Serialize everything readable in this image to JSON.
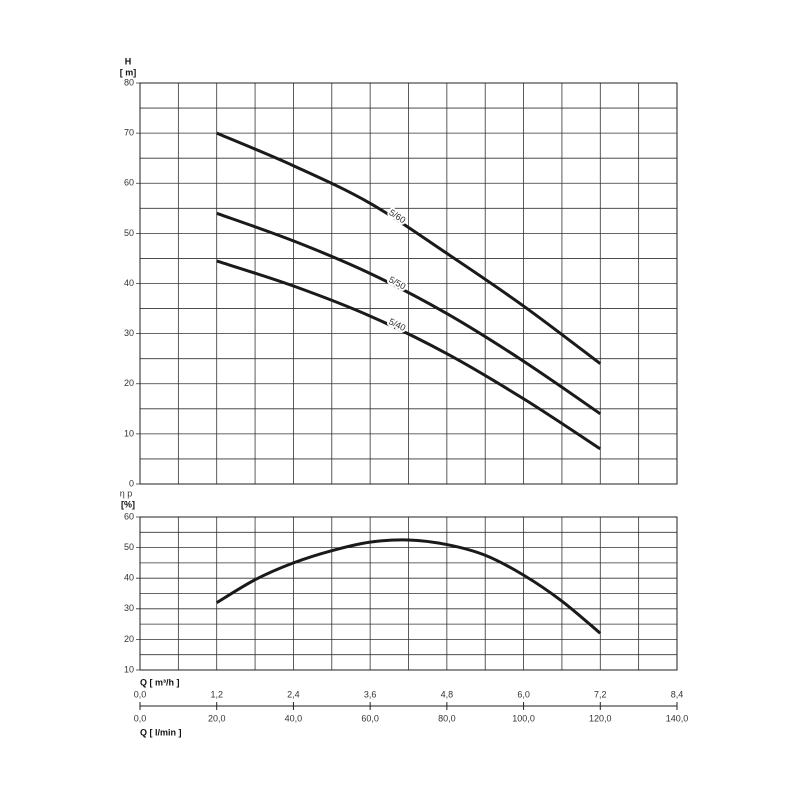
{
  "chart_data": [
    {
      "type": "line",
      "y_label": "H",
      "y_unit": "[ m]",
      "x": [
        20,
        40,
        60,
        80,
        100,
        120
      ],
      "series": [
        {
          "name": "5/60",
          "color": "#1a1a1a",
          "values": [
            70,
            63.5,
            56,
            46,
            35.5,
            24
          ]
        },
        {
          "name": "5/50",
          "color": "#1a1a1a",
          "values": [
            54,
            48.5,
            42,
            34,
            24.5,
            14
          ]
        },
        {
          "name": "5/40",
          "color": "#1a1a1a",
          "values": [
            44.5,
            39.5,
            33.5,
            26,
            17,
            7
          ]
        }
      ],
      "xlim": [
        0,
        140
      ],
      "xgrid": [
        0,
        10,
        20,
        30,
        40,
        50,
        60,
        70,
        80,
        90,
        100,
        110,
        120,
        130,
        140
      ],
      "ylim": [
        0,
        80
      ],
      "yticks": [
        0,
        10,
        20,
        30,
        40,
        50,
        60,
        70,
        80
      ],
      "ygrid": [
        5,
        15,
        25,
        35,
        45,
        55,
        65,
        75
      ],
      "grid": true
    },
    {
      "type": "line",
      "y_label": "η p",
      "y_unit": "[%]",
      "x": [
        20,
        30,
        40,
        50,
        60,
        70,
        80,
        90,
        100,
        110,
        120
      ],
      "series": [
        {
          "color": "#1a1a1a",
          "values": [
            32,
            39.5,
            45,
            49,
            51.8,
            52.5,
            51,
            47.5,
            41,
            32.5,
            22
          ]
        }
      ],
      "xlim": [
        0,
        140
      ],
      "xgrid": [
        0,
        10,
        20,
        30,
        40,
        50,
        60,
        70,
        80,
        90,
        100,
        110,
        120,
        130,
        140
      ],
      "ylim": [
        10,
        60
      ],
      "yticks": [
        10,
        20,
        30,
        40,
        50,
        60
      ],
      "ygrid": [
        15,
        25,
        35,
        45,
        55
      ],
      "grid": true,
      "xlabel": "Q [ l/min ]",
      "xticks": [
        {
          "value": 0,
          "label": "0,0"
        },
        {
          "value": 20,
          "label": "20,0"
        },
        {
          "value": 40,
          "label": "40,0"
        },
        {
          "value": 60,
          "label": "60,0"
        },
        {
          "value": 80,
          "label": "80,0"
        },
        {
          "value": 100,
          "label": "100,0"
        },
        {
          "value": 120,
          "label": "120,0"
        },
        {
          "value": 140,
          "label": "140,0"
        }
      ],
      "x2label": "Q [ m³/h ]",
      "x2lim": [
        0,
        8.4
      ],
      "x2ticks": [
        {
          "value": 0,
          "label": "0,0"
        },
        {
          "value": 1.2,
          "label": "1,2"
        },
        {
          "value": 2.4,
          "label": "2,4"
        },
        {
          "value": 3.6,
          "label": "3,6"
        },
        {
          "value": 4.8,
          "label": "4,8"
        },
        {
          "value": 6,
          "label": "6,0"
        },
        {
          "value": 7.2,
          "label": "7,2"
        },
        {
          "value": 8.4,
          "label": "8,4"
        }
      ]
    }
  ]
}
